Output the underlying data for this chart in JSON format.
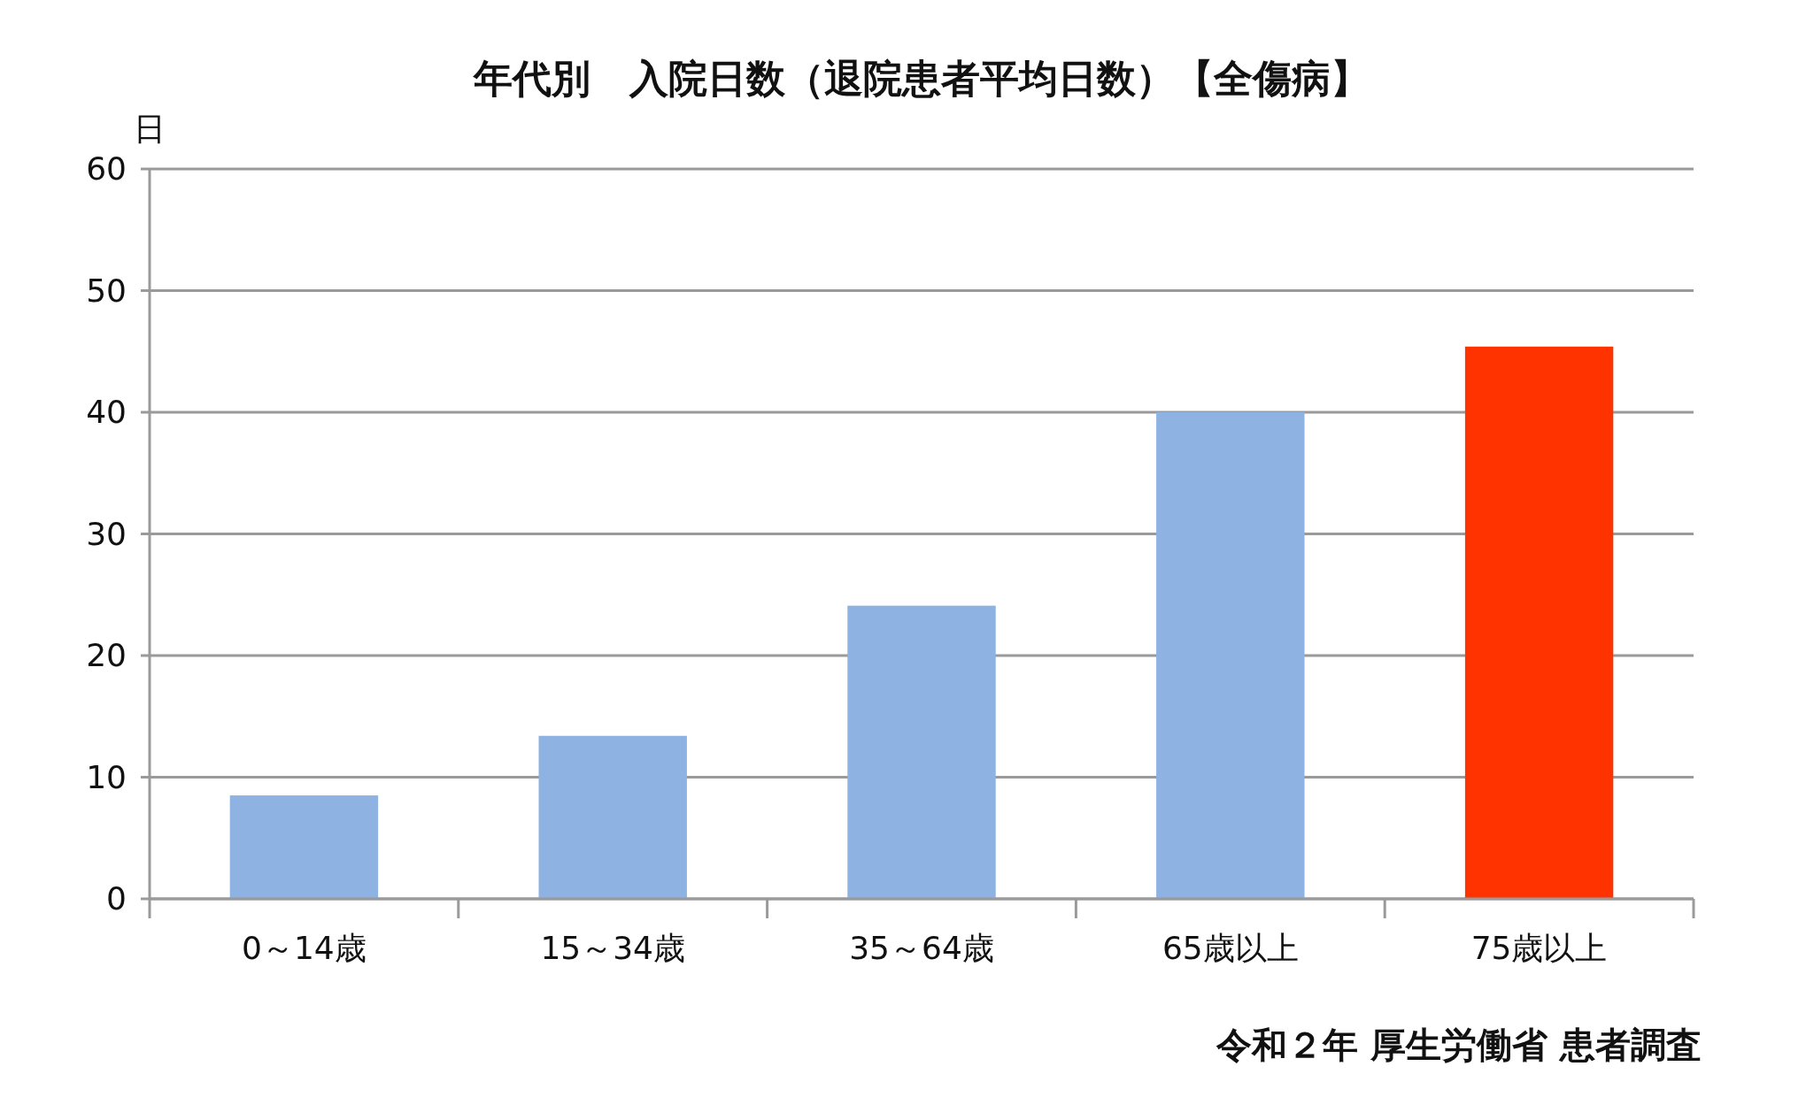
{
  "chart_data": {
    "type": "bar",
    "title": "年代別　入院日数（退院患者平均日数）【全傷病】",
    "ylabel": "日",
    "categories": [
      "0～14歳",
      "15～34歳",
      "35～64歳",
      "65歳以上",
      "75歳以上"
    ],
    "values": [
      8.5,
      13.4,
      24.1,
      40.0,
      45.4
    ],
    "colors": [
      "#8eb2e2",
      "#8eb2e2",
      "#8eb2e2",
      "#8eb2e2",
      "#ff3300"
    ],
    "ylim": [
      0,
      60
    ],
    "yticks": [
      0,
      10,
      20,
      30,
      40,
      50,
      60
    ],
    "grid": "y",
    "annotations": [
      "令和２年 厚生労働省 患者調査"
    ]
  }
}
